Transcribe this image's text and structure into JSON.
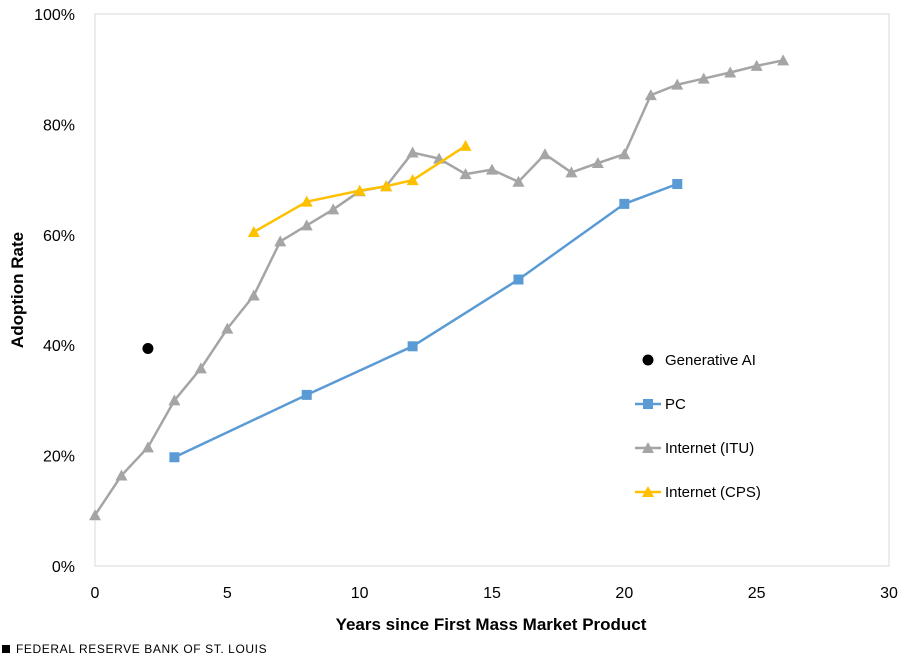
{
  "footer": {
    "source": "FEDERAL RESERVE BANK OF ST. LOUIS"
  },
  "chart_data": {
    "type": "line",
    "title": "",
    "xlabel": "Years since First Mass Market Product",
    "ylabel": "Adoption Rate",
    "xlim": [
      0,
      30
    ],
    "ylim": [
      0,
      100
    ],
    "x_ticks": [
      0,
      5,
      10,
      15,
      20,
      25,
      30
    ],
    "y_ticks": [
      0,
      20,
      40,
      60,
      80,
      100
    ],
    "x_tick_labels": [
      "0",
      "5",
      "10",
      "15",
      "20",
      "25",
      "30"
    ],
    "y_tick_labels": [
      "0%",
      "20%",
      "40%",
      "60%",
      "80%",
      "100%"
    ],
    "grid": false,
    "legend_position": "right",
    "series": [
      {
        "name": "Generative AI",
        "color": "#000000",
        "marker": "circle",
        "line": false,
        "x": [
          2
        ],
        "y": [
          39.4
        ]
      },
      {
        "name": "PC",
        "color": "#5b9bd5",
        "marker": "square",
        "line": true,
        "x": [
          3,
          8,
          12,
          16,
          20,
          22
        ],
        "y": [
          19.7,
          31.0,
          39.8,
          51.9,
          65.6,
          69.2
        ]
      },
      {
        "name": "Internet (ITU)",
        "color": "#a5a5a5",
        "marker": "triangle",
        "line": true,
        "x": [
          0,
          1,
          2,
          3,
          4,
          5,
          6,
          7,
          8,
          9,
          10,
          11,
          12,
          13,
          14,
          15,
          16,
          17,
          18,
          19,
          20,
          21,
          22,
          23,
          24,
          25,
          26
        ],
        "y": [
          9.2,
          16.4,
          21.5,
          30.0,
          35.8,
          43.0,
          49.0,
          58.8,
          61.7,
          64.6,
          67.9,
          68.8,
          74.9,
          73.8,
          71.0,
          71.8,
          69.6,
          74.6,
          71.3,
          73.0,
          74.6,
          85.3,
          87.2,
          88.3,
          89.4,
          90.6,
          91.6
        ]
      },
      {
        "name": "Internet (CPS)",
        "color": "#ffc000",
        "marker": "triangle",
        "line": true,
        "x": [
          6,
          8,
          10,
          11,
          12,
          14
        ],
        "y": [
          60.5,
          66.0,
          68.0,
          68.8,
          69.9,
          76.1
        ]
      }
    ]
  }
}
